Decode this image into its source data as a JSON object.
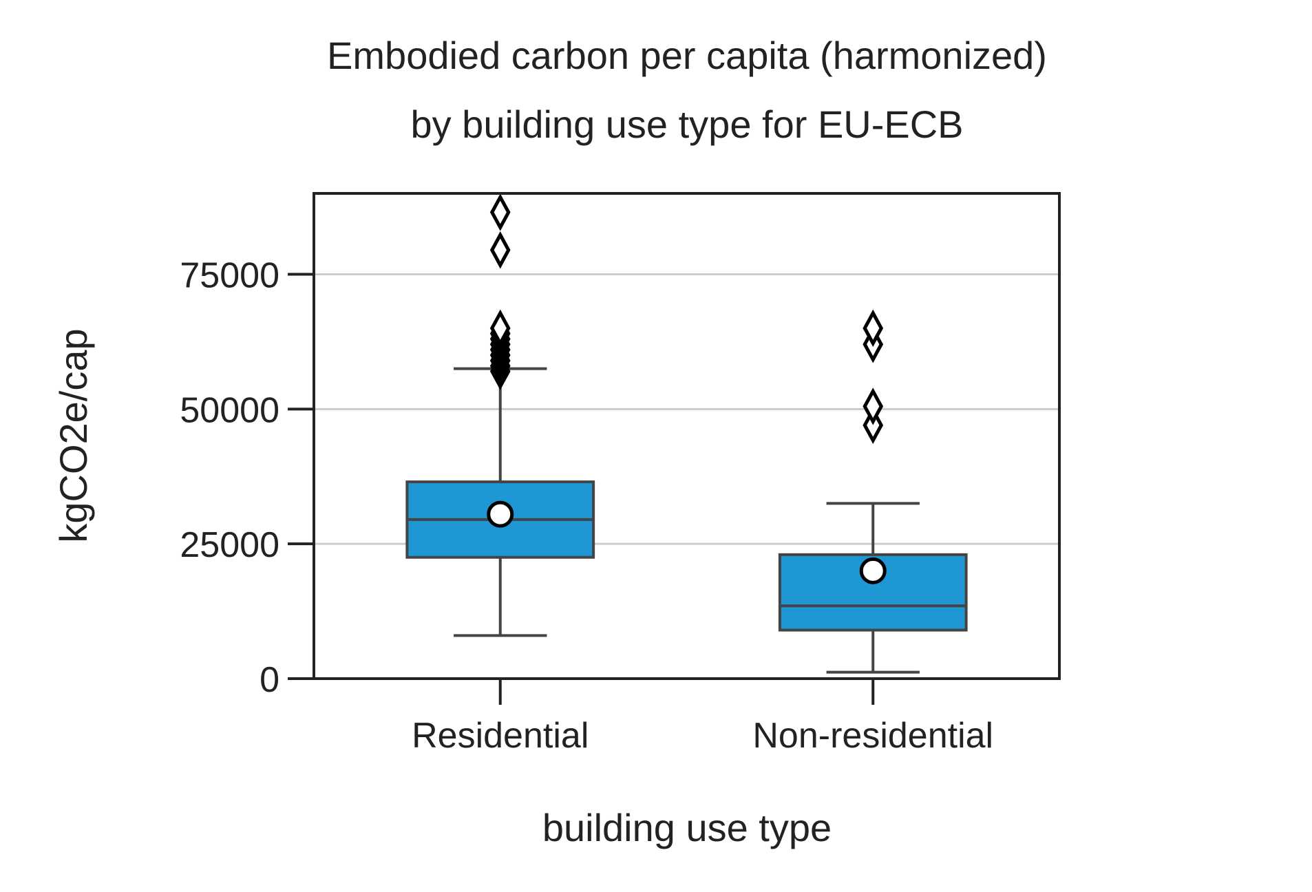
{
  "chart_data": {
    "type": "box",
    "title_lines": [
      "Embodied carbon per capita (harmonized)",
      "by building use type for EU-ECB"
    ],
    "xlabel": "building use type",
    "ylabel": "kgCO2e/cap",
    "ylim": [
      0,
      90000
    ],
    "yticks": [
      0,
      25000,
      50000,
      75000
    ],
    "ytick_labels": [
      "0",
      "25000",
      "50000",
      "75000"
    ],
    "grid": "horizontal",
    "box_color": "#1f97d4",
    "edge_color": "#444444",
    "categories": [
      "Residential",
      "Non-residential"
    ],
    "boxes": [
      {
        "category": "Residential",
        "whisker_low": 8000,
        "q1": 22500,
        "median": 29500,
        "q3": 36500,
        "whisker_high": 57500,
        "mean": 30500,
        "outliers": [
          57000,
          58000,
          59000,
          60000,
          61000,
          62000,
          63000,
          64000,
          65000,
          79500,
          86500
        ]
      },
      {
        "category": "Non-residential",
        "whisker_low": 1200,
        "q1": 9000,
        "median": 13500,
        "q3": 23000,
        "whisker_high": 32500,
        "mean": 20000,
        "outliers": [
          47000,
          50500,
          62000,
          65000
        ]
      }
    ]
  }
}
